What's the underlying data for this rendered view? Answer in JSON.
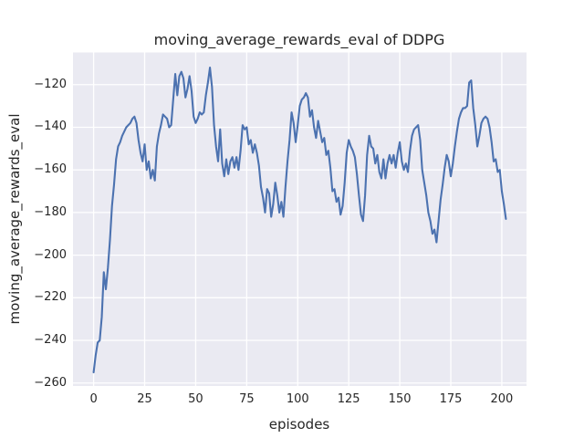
{
  "chart_data": {
    "type": "line",
    "title": "moving_average_rewards_eval of DDPG",
    "xlabel": "episodes",
    "ylabel": "moving_average_rewards_eval",
    "x_ticks": [
      0,
      25,
      50,
      75,
      100,
      125,
      150,
      175,
      200
    ],
    "y_ticks": [
      -120,
      -140,
      -160,
      -180,
      -200,
      -220,
      -240,
      -260
    ],
    "xlim": [
      -10.1,
      212.1
    ],
    "ylim": [
      -261.4,
      -104.9
    ],
    "grid": true,
    "legend": "none",
    "colors": {
      "plot_background": "#eaeaf2",
      "grid": "#ffffff",
      "line": "#4c72b0",
      "text": "#262626",
      "figure_background": "#ffffff"
    },
    "series": [
      {
        "name": "moving_average_rewards_eval",
        "x_start": 0,
        "x_step": 1,
        "values": [
          -255,
          -247,
          -241,
          -240,
          -229,
          -208,
          -216,
          -206,
          -193,
          -177,
          -167,
          -155,
          -149,
          -147,
          -144,
          -142,
          -140,
          -139,
          -138,
          -136,
          -135,
          -138,
          -146,
          -152,
          -156,
          -148,
          -160,
          -156,
          -164,
          -160,
          -165,
          -149,
          -143,
          -139,
          -134,
          -135,
          -136,
          -140,
          -139,
          -127,
          -115,
          -125,
          -116,
          -114,
          -117,
          -126,
          -122,
          -116,
          -123,
          -135,
          -138,
          -136,
          -133,
          -134,
          -133,
          -125,
          -119,
          -112,
          -121,
          -139,
          -149,
          -156,
          -141,
          -157,
          -163,
          -155,
          -162,
          -156,
          -154,
          -159,
          -154,
          -160,
          -151,
          -139,
          -141,
          -140,
          -148,
          -146,
          -152,
          -148,
          -152,
          -158,
          -168,
          -173,
          -180,
          -169,
          -171,
          -182,
          -176,
          -166,
          -172,
          -180,
          -175,
          -182,
          -168,
          -156,
          -146,
          -133,
          -138,
          -147,
          -139,
          -130,
          -127,
          -126,
          -124,
          -126,
          -135,
          -132,
          -140,
          -145,
          -137,
          -142,
          -147,
          -145,
          -153,
          -151,
          -159,
          -170,
          -169,
          -175,
          -173,
          -181,
          -177,
          -166,
          -152,
          -146,
          -149,
          -151,
          -154,
          -162,
          -172,
          -181,
          -184,
          -172,
          -153,
          -144,
          -149,
          -150,
          -157,
          -153,
          -161,
          -164,
          -155,
          -164,
          -157,
          -153,
          -157,
          -153,
          -159,
          -152,
          -147,
          -156,
          -160,
          -157,
          -161,
          -151,
          -144,
          -141,
          -140,
          -139,
          -146,
          -160,
          -166,
          -172,
          -180,
          -184,
          -190,
          -188,
          -194,
          -184,
          -174,
          -167,
          -159,
          -153,
          -156,
          -163,
          -157,
          -149,
          -142,
          -136,
          -133,
          -131,
          -131,
          -130,
          -119,
          -118,
          -131,
          -139,
          -149,
          -144,
          -138,
          -136,
          -135,
          -136,
          -140,
          -147,
          -156,
          -155,
          -161,
          -160,
          -170,
          -176,
          -183
        ]
      }
    ]
  }
}
